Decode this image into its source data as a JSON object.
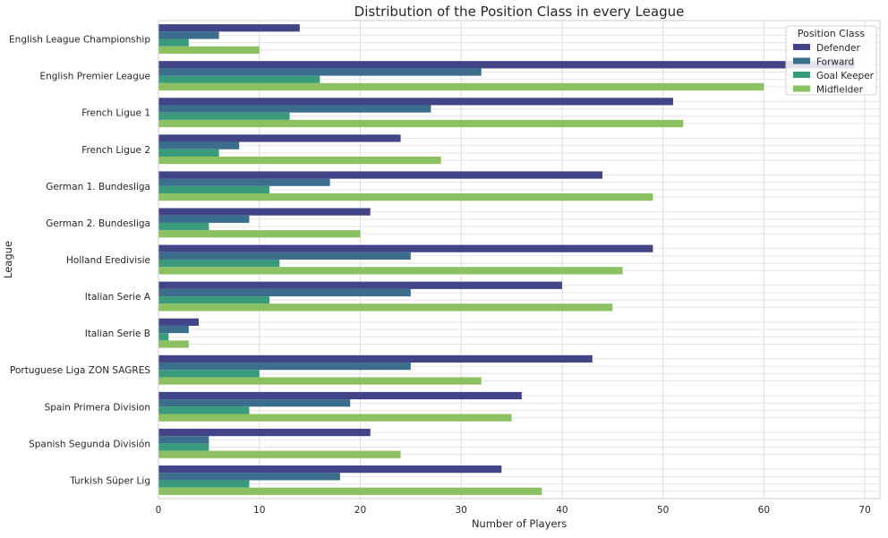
{
  "chart_data": {
    "type": "bar",
    "orientation": "horizontal",
    "title": "Distribution of the Position Class in every League",
    "xlabel": "Number of Players",
    "ylabel": "League",
    "xlim": [
      0,
      71.5
    ],
    "xticks": [
      0,
      10,
      20,
      30,
      40,
      50,
      60,
      70
    ],
    "grid": true,
    "legend_title": "Position Class",
    "legend_position": "top-right",
    "categories": [
      "English League Championship",
      "English Premier League",
      "French Ligue 1",
      "French Ligue 2",
      "German 1. Bundesliga",
      "German 2. Bundesliga",
      "Holland Eredivisie",
      "Italian Serie A",
      "Italian Serie B",
      "Portuguese Liga ZON SAGRES",
      "Spain Primera Division",
      "Spanish Segunda División",
      "Turkish Süper Lig"
    ],
    "series": [
      {
        "name": "Defender",
        "color": "#414487",
        "values": [
          14,
          69,
          51,
          24,
          44,
          21,
          49,
          40,
          4,
          43,
          36,
          21,
          34
        ]
      },
      {
        "name": "Forward",
        "color": "#3b6e8c",
        "values": [
          6,
          32,
          27,
          8,
          17,
          9,
          25,
          25,
          3,
          25,
          19,
          5,
          18
        ]
      },
      {
        "name": "Goal Keeper",
        "color": "#3a9a7c",
        "values": [
          3,
          16,
          13,
          6,
          11,
          5,
          12,
          11,
          1,
          10,
          9,
          5,
          9
        ]
      },
      {
        "name": "Midfielder",
        "color": "#8bc160",
        "values": [
          10,
          60,
          52,
          28,
          49,
          20,
          46,
          45,
          3,
          32,
          35,
          24,
          38
        ]
      }
    ]
  }
}
